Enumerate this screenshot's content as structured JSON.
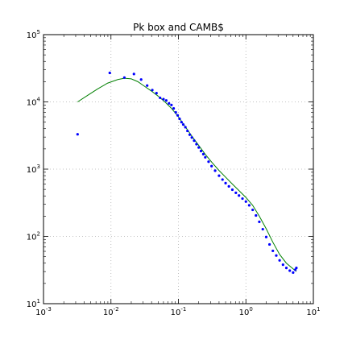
{
  "chart_data": {
    "type": "scatter",
    "title": "Pk box and CAMB$",
    "xlabel": "",
    "ylabel": "",
    "xscale": "log",
    "yscale": "log",
    "xlim": [
      0.001,
      10
    ],
    "ylim": [
      10,
      100000
    ],
    "grid": true,
    "x_tick_labels": [
      {
        "base": "10",
        "exp": "-3"
      },
      {
        "base": "10",
        "exp": "-2"
      },
      {
        "base": "10",
        "exp": "-1"
      },
      {
        "base": "10",
        "exp": "0"
      },
      {
        "base": "10",
        "exp": "1"
      }
    ],
    "y_tick_labels": [
      {
        "base": "10",
        "exp": "1"
      },
      {
        "base": "10",
        "exp": "2"
      },
      {
        "base": "10",
        "exp": "3"
      },
      {
        "base": "10",
        "exp": "4"
      },
      {
        "base": "10",
        "exp": "5"
      }
    ],
    "colors": {
      "points": "#0000ff",
      "line": "#007f00",
      "grid": "#b0b0b0"
    },
    "series": [
      {
        "kind": "points",
        "x": [
          0.0032,
          0.0096,
          0.0158,
          0.0219,
          0.028,
          0.0344,
          0.041,
          0.0473,
          0.0535,
          0.06,
          0.066,
          0.0724,
          0.0788,
          0.085,
          0.0913,
          0.0975,
          0.104,
          0.111,
          0.118,
          0.127,
          0.136,
          0.147,
          0.158,
          0.171,
          0.185,
          0.2,
          0.216,
          0.234,
          0.25,
          0.28,
          0.31,
          0.35,
          0.4,
          0.45,
          0.5,
          0.56,
          0.63,
          0.71,
          0.79,
          0.89,
          1.0,
          1.12,
          1.26,
          1.41,
          1.58,
          1.78,
          2.0,
          2.24,
          2.51,
          2.82,
          3.16,
          3.55,
          3.98,
          4.47,
          5.01,
          5.4,
          5.6
        ],
        "y": [
          3300,
          27000,
          23000,
          26000,
          21500,
          17500,
          15000,
          13500,
          11500,
          11000,
          10500,
          9500,
          9000,
          8000,
          7000,
          6300,
          5600,
          5000,
          4600,
          4200,
          3700,
          3250,
          2950,
          2650,
          2350,
          2100,
          1860,
          1670,
          1500,
          1290,
          1110,
          950,
          800,
          700,
          620,
          555,
          495,
          445,
          405,
          365,
          330,
          290,
          248,
          205,
          165,
          128,
          98,
          76,
          61,
          52,
          44,
          38,
          34,
          31,
          29,
          32,
          34
        ]
      },
      {
        "kind": "line",
        "x": [
          0.0032,
          0.0045,
          0.0063,
          0.0089,
          0.0126,
          0.0158,
          0.02,
          0.025,
          0.0316,
          0.0398,
          0.05,
          0.063,
          0.079,
          0.1,
          0.126,
          0.158,
          0.2,
          0.251,
          0.316,
          0.398,
          0.5,
          0.63,
          0.79,
          1.0,
          1.26,
          1.58,
          2.0,
          2.51,
          3.16,
          3.98,
          5.01,
          5.6
        ],
        "y": [
          10000,
          12500,
          15500,
          19000,
          21500,
          22500,
          22000,
          20000,
          17000,
          14500,
          12200,
          10000,
          8000,
          6000,
          4300,
          3100,
          2250,
          1650,
          1250,
          960,
          760,
          600,
          480,
          380,
          290,
          200,
          130,
          82,
          54,
          40,
          33,
          30
        ]
      }
    ]
  }
}
